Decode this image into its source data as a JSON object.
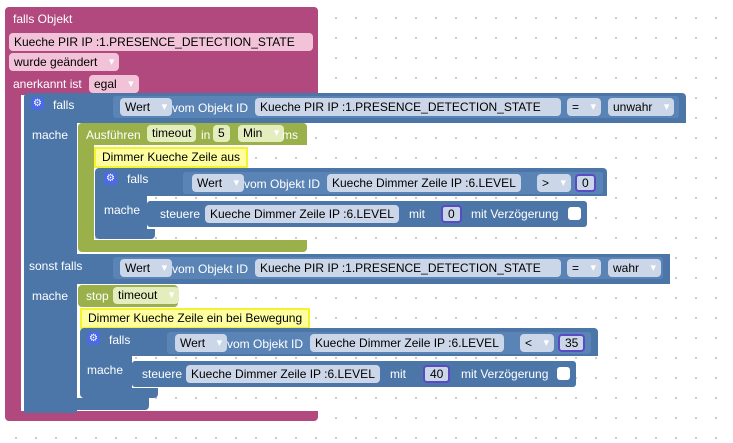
{
  "colors": {
    "event": "#b1497f",
    "event_field": "#f2c2d8",
    "logic": "#4c76a8",
    "logic_field": "#cbd6e8",
    "timeout": "#9ab04a",
    "timeout_field": "#e3edbd",
    "comment_bg": "#fefea1",
    "comment_border": "#f5f22e"
  },
  "trigger": {
    "header": "falls Objekt",
    "object_id": "Kueche PIR IP :1.PRESENCE_DETECTION_STATE",
    "condition": "wurde geändert",
    "ack_label": "anerkannt ist",
    "ack_value": "egal"
  },
  "if_block": {
    "falls_label": "falls",
    "mache_label": "mache",
    "sonst_falls_label": "sonst falls",
    "sonst_mache_label": "mache",
    "cond1": {
      "prop": "Wert",
      "from_label": "vom Objekt ID",
      "object_id": "Kueche PIR IP :1.PRESENCE_DETECTION_STATE",
      "op": "=",
      "value": "unwahr"
    },
    "cond2": {
      "prop": "Wert",
      "from_label": "vom Objekt ID",
      "object_id": "Kueche PIR IP :1.PRESENCE_DETECTION_STATE",
      "op": "=",
      "value": "wahr"
    }
  },
  "timeout": {
    "label": "Ausführen",
    "name": "timeout",
    "in_label": "in",
    "amount": "5",
    "unit": "Min",
    "ms_label": "ms"
  },
  "comment1": "Dimmer Kueche Zeile aus",
  "inner_if1": {
    "falls_label": "falls",
    "mache_label": "mache",
    "prop": "Wert",
    "from_label": "vom Objekt ID",
    "object_id": "Kueche Dimmer Zeile IP :6.LEVEL",
    "op": ">",
    "value": "0",
    "set_label": "steuere",
    "set_object": "Kueche Dimmer Zeile IP :6.LEVEL",
    "with_label": "mit",
    "set_value": "0",
    "delay_label": "mit Verzögerung"
  },
  "stop": {
    "label": "stop",
    "name": "timeout"
  },
  "comment2": "Dimmer Kueche Zeile ein bei Bewegung",
  "inner_if2": {
    "falls_label": "falls",
    "mache_label": "mache",
    "prop": "Wert",
    "from_label": "vom Objekt ID",
    "object_id": "Kueche Dimmer Zeile IP :6.LEVEL",
    "op": "<",
    "value": "35",
    "set_label": "steuere",
    "set_object": "Kueche Dimmer Zeile IP :6.LEVEL",
    "with_label": "mit",
    "set_value": "40",
    "delay_label": "mit Verzögerung"
  }
}
